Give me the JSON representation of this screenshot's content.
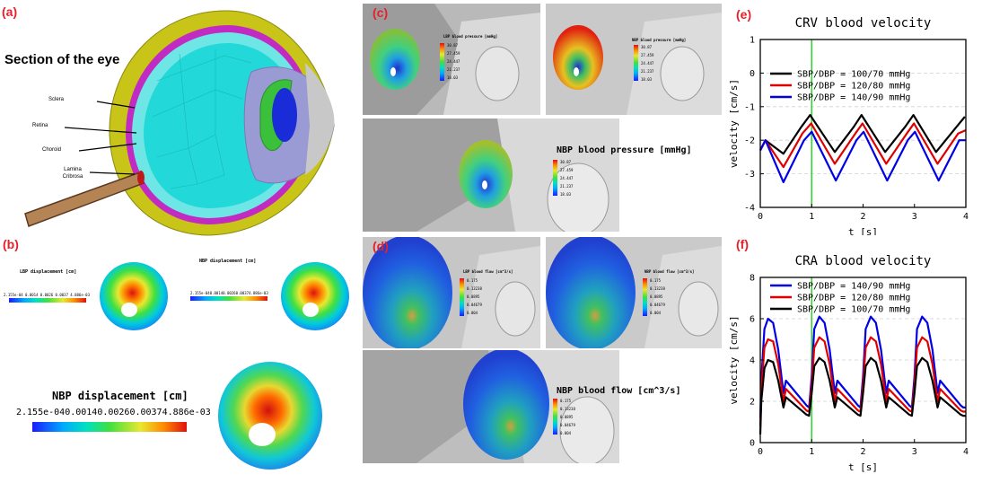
{
  "panels": {
    "a": {
      "label": "(a)",
      "title": "Section of the eye",
      "labels": [
        "Sclera",
        "Retina",
        "Choroid",
        "Lamina Cribrosa"
      ]
    },
    "b": {
      "label": "(b)",
      "lbp_title": "LBP displacement [cm]",
      "nbp_title_small": "NBP displacement [cm]",
      "nbp_title": "NBP displacement [cm]",
      "ticks": [
        "2.155e-04",
        "0.0014",
        "0.0026",
        "0.0037",
        "4.886e-03"
      ]
    },
    "c": {
      "label": "(c)",
      "lbp_title": "LBP blood pressure [mmHg]",
      "nbp_title_small": "NBP blood pressure [mmHg]",
      "nbp_title": "NBP blood pressure [mmHg]",
      "ticks": [
        "30.87",
        "27.459",
        "24.447",
        "21.237",
        "18.03"
      ]
    },
    "d": {
      "label": "(d)",
      "lbp_title": "LBP blood flow [cm^3/s]",
      "nbp_title_small": "NBP blood flow [cm^3/s]",
      "nbp_title": "NBP blood flow [cm^3/s]",
      "ticks": [
        "0.175",
        "0.13238",
        "0.0895",
        "0.04679",
        "0.004"
      ]
    },
    "e": {
      "label": "(e)"
    },
    "f": {
      "label": "(f)"
    }
  },
  "colors": {
    "black": "#000000",
    "red": "#e00000",
    "blue": "#0000e6",
    "green": "#35d435",
    "label_red": "#e8202a"
  },
  "chart_data": [
    {
      "type": "line",
      "title": "CRV blood velocity",
      "xlabel": "t [s]",
      "ylabel": "velocity [cm/s]",
      "xlim": [
        0,
        4
      ],
      "ylim": [
        -4,
        1
      ],
      "xticks": [
        "0",
        "1",
        "2",
        "3",
        "4"
      ],
      "yticks": [
        "-4",
        "-3",
        "-2",
        "-1",
        "0",
        "1"
      ],
      "marker_x": 1,
      "legend_position": "center-left",
      "series": [
        {
          "name": "SBP/DBP = 100/70 mmHg",
          "color": "#000000",
          "x": [
            0,
            0.1,
            0.45,
            0.8,
            0.97,
            1.45,
            1.82,
            1.97,
            2.43,
            2.82,
            2.98,
            3.42,
            3.82,
            3.98
          ],
          "y": [
            -2.3,
            -2.0,
            -2.4,
            -1.6,
            -1.25,
            -2.35,
            -1.6,
            -1.25,
            -2.35,
            -1.6,
            -1.25,
            -2.35,
            -1.6,
            -1.3
          ]
        },
        {
          "name": "SBP/DBP = 120/80 mmHg",
          "color": "#e00000",
          "x": [
            0,
            0.1,
            0.45,
            0.82,
            0.99,
            1.45,
            1.85,
            1.99,
            2.45,
            2.85,
            2.99,
            3.45,
            3.85,
            4.0
          ],
          "y": [
            -2.3,
            -2.0,
            -2.8,
            -1.8,
            -1.5,
            -2.7,
            -1.8,
            -1.5,
            -2.7,
            -1.8,
            -1.5,
            -2.7,
            -1.8,
            -1.7
          ]
        },
        {
          "name": "SBP/DBP = 140/90 mmHg",
          "color": "#0000e6",
          "x": [
            0,
            0.1,
            0.45,
            0.85,
            1.0,
            1.47,
            1.87,
            2.01,
            2.47,
            2.87,
            3.01,
            3.47,
            3.87,
            4.0
          ],
          "y": [
            -2.3,
            -2.0,
            -3.25,
            -2.0,
            -1.75,
            -3.2,
            -2.0,
            -1.75,
            -3.2,
            -2.0,
            -1.75,
            -3.2,
            -2.0,
            -2.0
          ]
        }
      ]
    },
    {
      "type": "line",
      "title": "CRA blood velocity",
      "xlabel": "t [s]",
      "ylabel": "velocity [cm/s]",
      "xlim": [
        0,
        4
      ],
      "ylim": [
        0,
        8
      ],
      "xticks": [
        "0",
        "1",
        "2",
        "3",
        "4"
      ],
      "yticks": [
        "0",
        "2",
        "4",
        "6",
        "8"
      ],
      "marker_x": 1,
      "legend_position": "top-left",
      "series": [
        {
          "name": "SBP/DBP = 140/90 mmHg",
          "color": "#0000e6",
          "x": [
            0,
            0.02,
            0.08,
            0.15,
            0.25,
            0.35,
            0.45,
            0.5,
            0.9,
            0.95,
            1.0,
            1.05,
            1.15,
            1.25,
            1.35,
            1.45,
            1.5,
            1.9,
            1.95,
            2.0,
            2.05,
            2.15,
            2.25,
            2.35,
            2.45,
            2.5,
            2.9,
            2.95,
            3.0,
            3.05,
            3.15,
            3.25,
            3.35,
            3.45,
            3.5,
            3.9,
            3.95,
            4.0
          ],
          "y": [
            1.2,
            3.0,
            5.5,
            6.0,
            5.8,
            4.5,
            2.4,
            3.0,
            1.8,
            1.7,
            3.2,
            5.5,
            6.1,
            5.8,
            4.5,
            2.4,
            3.0,
            1.8,
            1.7,
            3.2,
            5.5,
            6.1,
            5.8,
            4.5,
            2.4,
            3.0,
            1.8,
            1.7,
            3.2,
            5.5,
            6.1,
            5.8,
            4.5,
            2.4,
            3.0,
            1.8,
            1.7,
            1.7
          ]
        },
        {
          "name": "SBP/DBP = 120/80 mmHg",
          "color": "#e00000",
          "x": [
            0,
            0.02,
            0.08,
            0.15,
            0.25,
            0.35,
            0.45,
            0.5,
            0.9,
            0.95,
            1.0,
            1.05,
            1.15,
            1.25,
            1.35,
            1.45,
            1.5,
            1.9,
            1.95,
            2.0,
            2.05,
            2.15,
            2.25,
            2.35,
            2.45,
            2.5,
            2.9,
            2.95,
            3.0,
            3.05,
            3.15,
            3.25,
            3.35,
            3.45,
            3.5,
            3.9,
            3.95,
            4.0
          ],
          "y": [
            0.8,
            2.5,
            4.6,
            5.0,
            4.9,
            3.8,
            2.0,
            2.6,
            1.55,
            1.5,
            2.8,
            4.6,
            5.1,
            4.9,
            3.8,
            2.0,
            2.6,
            1.55,
            1.5,
            2.8,
            4.6,
            5.1,
            4.9,
            3.8,
            2.0,
            2.6,
            1.55,
            1.5,
            2.8,
            4.6,
            5.1,
            4.9,
            3.8,
            2.0,
            2.6,
            1.55,
            1.5,
            1.5
          ]
        },
        {
          "name": "SBP/DBP = 100/70 mmHg",
          "color": "#000000",
          "x": [
            0,
            0.02,
            0.08,
            0.15,
            0.25,
            0.35,
            0.45,
            0.5,
            0.9,
            0.95,
            1.0,
            1.05,
            1.15,
            1.25,
            1.35,
            1.45,
            1.5,
            1.9,
            1.95,
            2.0,
            2.05,
            2.15,
            2.25,
            2.35,
            2.45,
            2.5,
            2.9,
            2.95,
            3.0,
            3.05,
            3.15,
            3.25,
            3.35,
            3.45,
            3.5,
            3.9,
            3.95,
            4.0
          ],
          "y": [
            0.4,
            2.0,
            3.6,
            4.0,
            3.9,
            3.0,
            1.7,
            2.2,
            1.35,
            1.3,
            2.4,
            3.7,
            4.1,
            3.9,
            3.0,
            1.7,
            2.2,
            1.35,
            1.3,
            2.4,
            3.7,
            4.1,
            3.9,
            3.0,
            1.7,
            2.2,
            1.35,
            1.3,
            2.4,
            3.7,
            4.1,
            3.9,
            3.0,
            1.7,
            2.2,
            1.35,
            1.3,
            1.3
          ]
        }
      ]
    }
  ]
}
